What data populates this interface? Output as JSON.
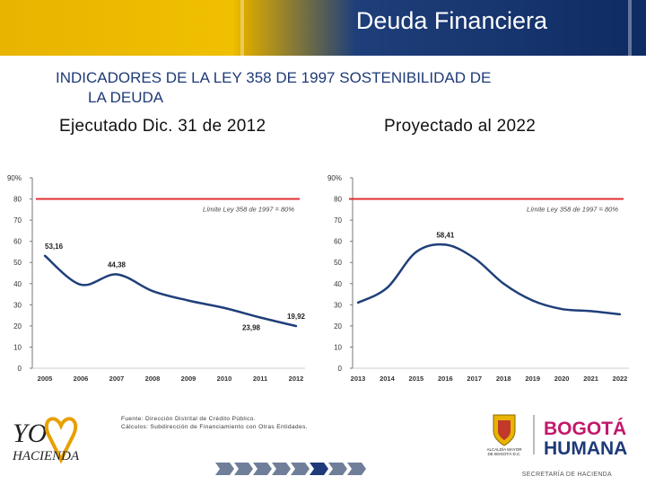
{
  "header": {
    "title": "Deuda Financiera",
    "subtitle_line1": "INDICADORES DE LA LEY 358 DE 1997 SOSTENIBILIDAD DE",
    "subtitle_line2": "LA DEUDA"
  },
  "panels": {
    "left_label": "Ejecutado Dic. 31 de 2012",
    "right_label": "Proyectado al 2022"
  },
  "chart_data": [
    {
      "type": "line",
      "x": [
        "2005",
        "2006",
        "2007",
        "2008",
        "2009",
        "2010",
        "2011",
        "2012"
      ],
      "series": [
        {
          "values": [
            53.16,
            39.5,
            44.38,
            36.5,
            32,
            28.5,
            23.98,
            19.92
          ]
        }
      ],
      "point_labels": [
        {
          "index": 0,
          "text": "53,16"
        },
        {
          "index": 2,
          "text": "44,38"
        },
        {
          "index": 6,
          "text": "23,98"
        },
        {
          "index": 7,
          "text": "19,92"
        }
      ],
      "reference_line": {
        "value": 80,
        "label": "Límite Ley 358 de 1997 = 80%",
        "color": "#e03030"
      },
      "ylim": [
        0,
        90
      ],
      "yticks": [
        "0",
        "10",
        "20",
        "30",
        "40",
        "50",
        "60",
        "70",
        "80",
        "90%"
      ],
      "line_color": "#1f3f7a",
      "grid": false
    },
    {
      "type": "line",
      "x": [
        "2013",
        "2014",
        "2015",
        "2016",
        "2017",
        "2018",
        "2019",
        "2020",
        "2021",
        "2022"
      ],
      "series": [
        {
          "values": [
            31,
            38,
            55,
            58.41,
            52,
            40,
            32,
            28,
            27,
            25.5
          ]
        }
      ],
      "point_labels": [
        {
          "index": 3,
          "text": "58,41"
        }
      ],
      "reference_line": {
        "value": 80,
        "label": "Límite Ley 358 de 1997 = 80%",
        "color": "#e03030"
      },
      "ylim": [
        0,
        90
      ],
      "yticks": [
        "0",
        "10",
        "20",
        "30",
        "40",
        "50",
        "60",
        "70",
        "80",
        "90%"
      ],
      "line_color": "#1f3f7a",
      "grid": false
    }
  ],
  "footer": {
    "note_line1": "Fuente: Dirección Distrital de Crédito Público.",
    "note_line2": "Cálculos: Subdirección de Financiamiento con Otras Entidades.",
    "logo_left_1": "YO",
    "logo_left_2": "HACIENDA",
    "crest_caption_1": "ALCALDÍA MAYOR",
    "crest_caption_2": "DE BOGOTÁ D.C.",
    "brand_1": "BOGOTÁ",
    "brand_2": "HUMANA",
    "secretaria": "SECRETARÍA DE HACIENDA",
    "progress_total": 8,
    "progress_current": 6,
    "colors": {
      "navy": "#1e3a78",
      "gold": "#e8b400",
      "red": "#e03030",
      "pink": "#c2186b"
    }
  }
}
